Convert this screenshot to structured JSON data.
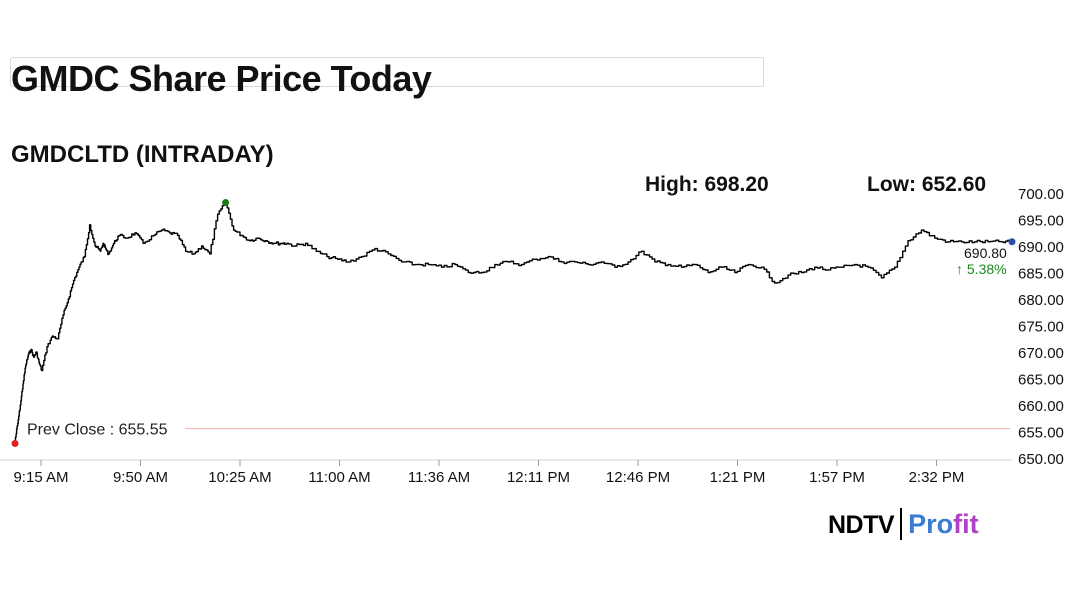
{
  "page": {
    "title": "GMDC Share Price Today"
  },
  "chart_header": {
    "title": "GMDCLTD (INTRADAY)",
    "high_label": "High: 698.20",
    "low_label": "Low: 652.60"
  },
  "branding": {
    "ndtv": "NDTV",
    "profit_a": "Pro",
    "profit_b": "fit"
  },
  "colors": {
    "line": "#000000",
    "prev_close_line": "#f4b3b3",
    "high_marker": "#1a7a1a",
    "open_marker": "#e02020",
    "change_text": "#1a8a1a",
    "last_marker": "#2a4fb0"
  },
  "chart_data": {
    "type": "line",
    "title": "GMDCLTD (INTRADAY)",
    "xlabel": "",
    "ylabel": "",
    "ylim": [
      650,
      700
    ],
    "y_ticks": [
      "700.00",
      "695.00",
      "690.00",
      "685.00",
      "680.00",
      "675.00",
      "670.00",
      "665.00",
      "660.00",
      "655.00",
      "650.00"
    ],
    "x_ticks": [
      "9:15 AM",
      "9:50 AM",
      "10:25 AM",
      "11:00 AM",
      "11:36 AM",
      "12:11 PM",
      "12:46 PM",
      "1:21 PM",
      "1:57 PM",
      "2:32 PM"
    ],
    "prev_close": 655.55,
    "prev_close_label": "Prev Close : 655.55",
    "last_price": "690.80",
    "change_pct": "5.38%",
    "high": 698.2,
    "low": 652.6,
    "series": [
      {
        "x": [
          "9:15",
          "9:16",
          "9:17",
          "9:18",
          "9:19",
          "9:20",
          "9:21",
          "9:22",
          "9:23",
          "9:24",
          "9:25",
          "9:27",
          "9:29",
          "9:31",
          "9:33",
          "9:35",
          "9:37",
          "9:39",
          "9:41",
          "9:43",
          "9:45",
          "9:47",
          "9:48",
          "9:49",
          "9:50",
          "9:52",
          "9:54",
          "9:57",
          "10:00",
          "10:03",
          "10:07",
          "10:10",
          "10:13",
          "10:16",
          "10:19",
          "10:22",
          "10:25",
          "10:28",
          "10:31",
          "10:34",
          "10:37",
          "10:40",
          "10:43",
          "10:46",
          "10:49",
          "10:52",
          "10:55",
          "10:57",
          "11:00",
          "11:04",
          "11:08",
          "11:12",
          "11:16",
          "11:20",
          "11:25",
          "11:30",
          "11:35",
          "11:40",
          "11:45",
          "11:50",
          "11:55",
          "12:00",
          "12:05",
          "12:10",
          "12:15",
          "12:20",
          "12:25",
          "12:30",
          "12:35",
          "12:40",
          "12:45",
          "12:50",
          "12:55",
          "13:00",
          "13:05",
          "13:10",
          "13:15",
          "13:20",
          "13:25",
          "13:30",
          "13:35",
          "13:40",
          "13:45",
          "13:50",
          "13:55",
          "14:00",
          "14:05",
          "14:10",
          "14:15",
          "14:20",
          "14:25",
          "14:30",
          "14:35",
          "14:40",
          "14:45",
          "14:50",
          "14:55",
          "15:00",
          "15:05",
          "15:10",
          "15:15",
          "15:20",
          "15:25",
          "15:29"
        ],
        "values": [
          653.3,
          656.5,
          660.0,
          664.0,
          667.5,
          669.5,
          670.5,
          669.0,
          670.0,
          668.0,
          666.5,
          671.0,
          673.0,
          672.5,
          677.0,
          680.0,
          683.5,
          686.0,
          688.0,
          694.0,
          690.0,
          689.0,
          690.5,
          689.5,
          688.5,
          690.5,
          692.0,
          691.5,
          692.5,
          690.5,
          692.0,
          693.0,
          692.5,
          692.0,
          689.0,
          688.5,
          690.0,
          688.5,
          696.0,
          698.2,
          693.0,
          692.0,
          691.0,
          691.5,
          691.0,
          690.5,
          690.5,
          690.5,
          690.0,
          690.5,
          689.0,
          688.0,
          687.5,
          687.0,
          688.0,
          689.5,
          688.5,
          687.0,
          686.5,
          686.5,
          686.0,
          686.5,
          685.0,
          685.0,
          686.5,
          687.0,
          686.5,
          687.5,
          688.0,
          687.0,
          687.0,
          686.5,
          687.0,
          686.0,
          687.0,
          689.0,
          687.0,
          686.5,
          686.0,
          686.5,
          685.0,
          686.0,
          685.0,
          686.5,
          686.0,
          683.0,
          684.5,
          685.0,
          686.0,
          685.5,
          686.0,
          686.5,
          686.0,
          684.0,
          686.0,
          691.0,
          693.0,
          691.5,
          690.8,
          690.8,
          690.8,
          690.8,
          690.8,
          690.8
        ]
      }
    ]
  }
}
